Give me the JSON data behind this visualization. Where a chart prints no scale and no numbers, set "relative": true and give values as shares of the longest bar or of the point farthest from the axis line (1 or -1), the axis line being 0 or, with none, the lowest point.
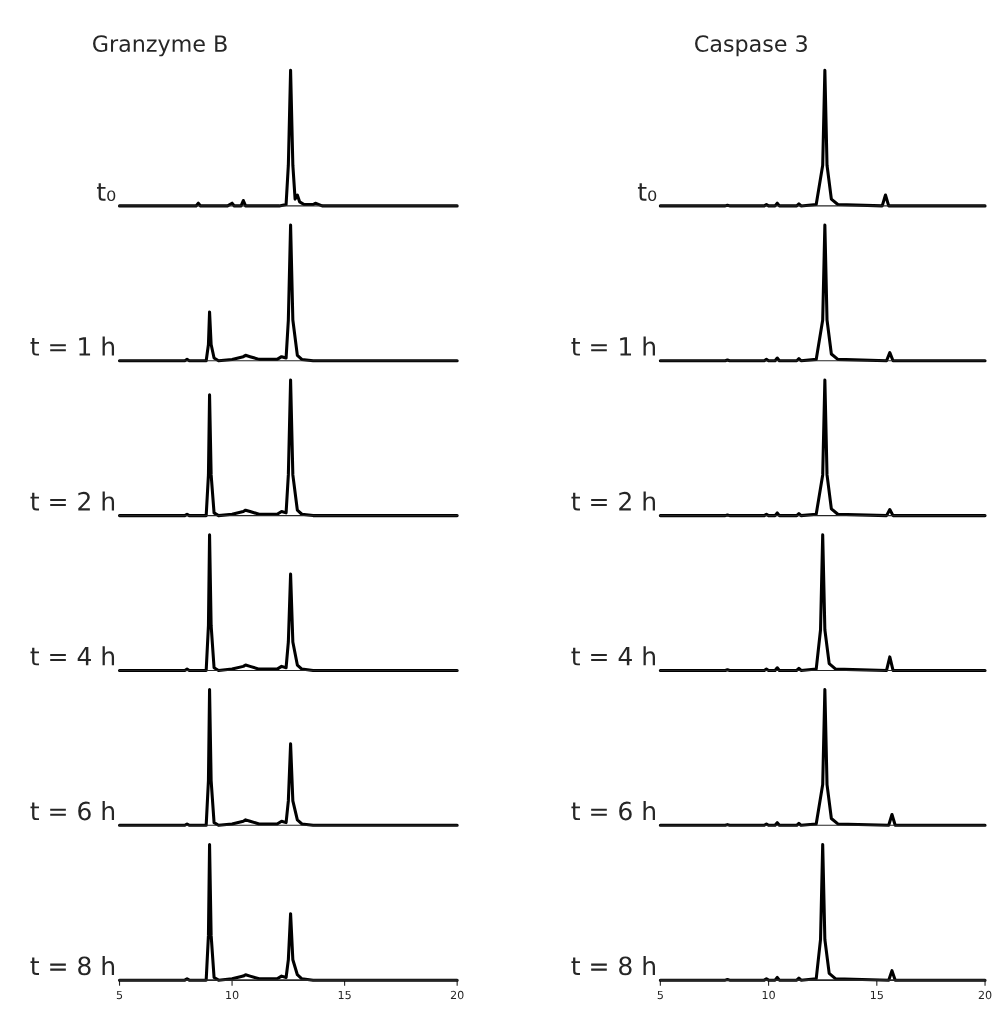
{
  "chart_data": [
    {
      "type": "line",
      "relative": true,
      "title": "Granzyme B",
      "ylabel": "t₀",
      "color": "#000000",
      "xlim": [
        5,
        20
      ],
      "xticks": [
        5,
        10,
        15,
        20
      ],
      "tick_labels": false,
      "x": [
        5,
        8.0,
        8.4,
        8.5,
        8.6,
        9.8,
        10.0,
        10.1,
        10.4,
        10.5,
        10.6,
        12.1,
        12.4,
        12.5,
        12.6,
        12.7,
        12.8,
        12.9,
        13.0,
        13.2,
        13.6,
        13.7,
        14,
        20
      ],
      "values": [
        0,
        0,
        0,
        0.02,
        0,
        0,
        0.02,
        0,
        0,
        0.04,
        0,
        0,
        0.01,
        0.3,
        1,
        0.3,
        0.05,
        0.08,
        0.03,
        0.01,
        0.01,
        0.02,
        0,
        0
      ]
    },
    {
      "type": "line",
      "relative": true,
      "ylabel": "t = 1 h",
      "color": "#000000",
      "xlim": [
        5,
        20
      ],
      "xticks": [
        5,
        10,
        15,
        20
      ],
      "tick_labels": false,
      "x": [
        5,
        7.9,
        8.0,
        8.1,
        8.85,
        8.95,
        9.0,
        9.07,
        9.2,
        9.4,
        10,
        10.5,
        10.6,
        10.8,
        11.2,
        12.0,
        12.2,
        12.4,
        12.5,
        12.6,
        12.7,
        12.9,
        13.1,
        13.6,
        20
      ],
      "values": [
        0,
        0,
        0.01,
        0,
        0,
        0.12,
        0.36,
        0.12,
        0.02,
        0,
        0.01,
        0.03,
        0.04,
        0.03,
        0.01,
        0.01,
        0.03,
        0.02,
        0.3,
        1,
        0.3,
        0.04,
        0.01,
        0,
        0
      ]
    },
    {
      "type": "line",
      "relative": true,
      "ylabel": "t = 2 h",
      "color": "#000000",
      "xlim": [
        5,
        20
      ],
      "xticks": [
        5,
        10,
        15,
        20
      ],
      "tick_labels": false,
      "x": [
        5,
        7.9,
        8.0,
        8.1,
        8.85,
        8.95,
        9.0,
        9.07,
        9.2,
        9.4,
        10,
        10.5,
        10.6,
        10.8,
        11.2,
        12.0,
        12.2,
        12.4,
        12.5,
        12.6,
        12.7,
        12.9,
        13.1,
        13.6,
        20
      ],
      "values": [
        0,
        0,
        0.01,
        0,
        0,
        0.3,
        0.89,
        0.3,
        0.02,
        0,
        0.01,
        0.03,
        0.04,
        0.03,
        0.01,
        0.01,
        0.03,
        0.02,
        0.3,
        1,
        0.3,
        0.04,
        0.01,
        0,
        0
      ]
    },
    {
      "type": "line",
      "relative": true,
      "ylabel": "t = 4 h",
      "color": "#000000",
      "xlim": [
        5,
        20
      ],
      "xticks": [
        5,
        10,
        15,
        20
      ],
      "tick_labels": false,
      "x": [
        5,
        7.9,
        8.0,
        8.1,
        8.85,
        8.95,
        9.0,
        9.07,
        9.2,
        9.4,
        10,
        10.5,
        10.6,
        10.8,
        11.2,
        12.0,
        12.2,
        12.4,
        12.5,
        12.6,
        12.7,
        12.9,
        13.1,
        13.6,
        20
      ],
      "values": [
        0,
        0,
        0.01,
        0,
        0,
        0.33,
        1,
        0.33,
        0.02,
        0,
        0.01,
        0.03,
        0.04,
        0.03,
        0.01,
        0.01,
        0.03,
        0.02,
        0.21,
        0.71,
        0.21,
        0.04,
        0.01,
        0,
        0
      ]
    },
    {
      "type": "line",
      "relative": true,
      "ylabel": "t = 6 h",
      "color": "#000000",
      "xlim": [
        5,
        20
      ],
      "xticks": [
        5,
        10,
        15,
        20
      ],
      "tick_labels": false,
      "x": [
        5,
        7.9,
        8.0,
        8.1,
        8.85,
        8.95,
        9.0,
        9.07,
        9.2,
        9.4,
        10,
        10.5,
        10.6,
        10.8,
        11.2,
        12.0,
        12.2,
        12.4,
        12.5,
        12.6,
        12.7,
        12.9,
        13.1,
        13.6,
        20
      ],
      "values": [
        0,
        0,
        0.01,
        0,
        0,
        0.33,
        1,
        0.33,
        0.02,
        0,
        0.01,
        0.03,
        0.04,
        0.03,
        0.01,
        0.01,
        0.03,
        0.02,
        0.18,
        0.6,
        0.18,
        0.04,
        0.01,
        0,
        0
      ]
    },
    {
      "type": "line",
      "relative": true,
      "ylabel": "t = 8 h",
      "color": "#000000",
      "xlim": [
        5,
        20
      ],
      "xticks": [
        5,
        10,
        15,
        20
      ],
      "tick_labels": "x",
      "x": [
        5,
        7.9,
        8.0,
        8.1,
        8.85,
        8.95,
        9.0,
        9.07,
        9.2,
        9.4,
        10,
        10.5,
        10.6,
        10.8,
        11.2,
        12.0,
        12.2,
        12.4,
        12.5,
        12.6,
        12.7,
        12.9,
        13.1,
        13.6,
        20
      ],
      "values": [
        0,
        0,
        0.01,
        0,
        0,
        0.33,
        1,
        0.33,
        0.02,
        0,
        0.01,
        0.03,
        0.04,
        0.03,
        0.01,
        0.01,
        0.03,
        0.02,
        0.15,
        0.49,
        0.15,
        0.04,
        0.01,
        0,
        0
      ]
    },
    {
      "type": "line",
      "relative": true,
      "title": "Caspase 3",
      "ylabel": "t₀",
      "color": "#000000",
      "xlim": [
        5,
        20
      ],
      "xticks": [
        5,
        10,
        15,
        20
      ],
      "tick_labels": false,
      "x": [
        5,
        8,
        8.1,
        8.2,
        9.8,
        9.9,
        10.0,
        10.3,
        10.4,
        10.5,
        11.3,
        11.4,
        11.5,
        12.2,
        12.5,
        12.6,
        12.7,
        12.9,
        13.2,
        15.25,
        15.4,
        15.55,
        16.5,
        20
      ],
      "values": [
        0,
        0,
        0.005,
        0,
        0,
        0.01,
        0,
        0,
        0.02,
        0,
        0,
        0.015,
        0,
        0.01,
        0.3,
        1,
        0.3,
        0.05,
        0.01,
        0,
        0.08,
        0,
        0,
        0
      ]
    },
    {
      "type": "line",
      "relative": true,
      "ylabel": "t = 1 h",
      "color": "#000000",
      "xlim": [
        5,
        20
      ],
      "xticks": [
        5,
        10,
        15,
        20
      ],
      "tick_labels": false,
      "x": [
        5,
        8,
        8.1,
        8.2,
        9.8,
        9.9,
        10.0,
        10.3,
        10.4,
        10.5,
        11.3,
        11.4,
        11.5,
        12.2,
        12.5,
        12.6,
        12.7,
        12.9,
        13.2,
        15.45,
        15.6,
        15.75,
        16.5,
        20
      ],
      "values": [
        0,
        0,
        0.005,
        0,
        0,
        0.01,
        0,
        0,
        0.02,
        0,
        0,
        0.015,
        0,
        0.01,
        0.3,
        1,
        0.3,
        0.05,
        0.01,
        0,
        0.06,
        0,
        0,
        0
      ]
    },
    {
      "type": "line",
      "relative": true,
      "ylabel": "t = 2 h",
      "color": "#000000",
      "xlim": [
        5,
        20
      ],
      "xticks": [
        5,
        10,
        15,
        20
      ],
      "tick_labels": false,
      "x": [
        5,
        8,
        8.1,
        8.2,
        9.8,
        9.9,
        10.0,
        10.3,
        10.4,
        10.5,
        11.3,
        11.4,
        11.5,
        12.2,
        12.5,
        12.6,
        12.7,
        12.9,
        13.2,
        15.45,
        15.6,
        15.75,
        16.5,
        20
      ],
      "values": [
        0,
        0,
        0.005,
        0,
        0,
        0.01,
        0,
        0,
        0.02,
        0,
        0,
        0.015,
        0,
        0.01,
        0.3,
        1,
        0.3,
        0.05,
        0.01,
        0,
        0.045,
        0,
        0,
        0
      ]
    },
    {
      "type": "line",
      "relative": true,
      "ylabel": "t = 4 h",
      "color": "#000000",
      "xlim": [
        5,
        20
      ],
      "xticks": [
        5,
        10,
        15,
        20
      ],
      "tick_labels": false,
      "x": [
        5,
        8,
        8.1,
        8.2,
        9.8,
        9.9,
        10.0,
        10.3,
        10.4,
        10.5,
        11.3,
        11.4,
        11.5,
        12.2,
        12.4,
        12.5,
        12.6,
        12.8,
        13.1,
        15.45,
        15.6,
        15.75,
        16.5,
        20
      ],
      "values": [
        0,
        0,
        0.005,
        0,
        0,
        0.01,
        0,
        0,
        0.02,
        0,
        0,
        0.015,
        0,
        0.01,
        0.3,
        1,
        0.3,
        0.05,
        0.01,
        0,
        0.1,
        0,
        0,
        0
      ]
    },
    {
      "type": "line",
      "relative": true,
      "ylabel": "t = 6 h",
      "color": "#000000",
      "xlim": [
        5,
        20
      ],
      "xticks": [
        5,
        10,
        15,
        20
      ],
      "tick_labels": false,
      "x": [
        5,
        8,
        8.1,
        8.2,
        9.8,
        9.9,
        10.0,
        10.3,
        10.4,
        10.5,
        11.3,
        11.4,
        11.5,
        12.2,
        12.5,
        12.6,
        12.7,
        12.9,
        13.2,
        15.55,
        15.7,
        15.85,
        16.5,
        20
      ],
      "values": [
        0,
        0,
        0.005,
        0,
        0,
        0.01,
        0,
        0,
        0.02,
        0,
        0,
        0.015,
        0,
        0.01,
        0.3,
        1,
        0.3,
        0.05,
        0.01,
        0,
        0.08,
        0,
        0,
        0
      ]
    },
    {
      "type": "line",
      "relative": true,
      "ylabel": "t = 8 h",
      "color": "#000000",
      "xlim": [
        5,
        20
      ],
      "xticks": [
        5,
        10,
        15,
        20
      ],
      "tick_labels": "x",
      "x": [
        5,
        8,
        8.1,
        8.2,
        9.8,
        9.9,
        10.0,
        10.3,
        10.4,
        10.5,
        11.3,
        11.4,
        11.5,
        12.2,
        12.4,
        12.5,
        12.6,
        12.8,
        13.1,
        15.55,
        15.7,
        15.85,
        16.5,
        20
      ],
      "values": [
        0,
        0,
        0.005,
        0,
        0,
        0.01,
        0,
        0,
        0.02,
        0,
        0,
        0.015,
        0,
        0.01,
        0.3,
        1,
        0.3,
        0.05,
        0.01,
        0,
        0.07,
        0,
        0,
        0
      ]
    }
  ]
}
